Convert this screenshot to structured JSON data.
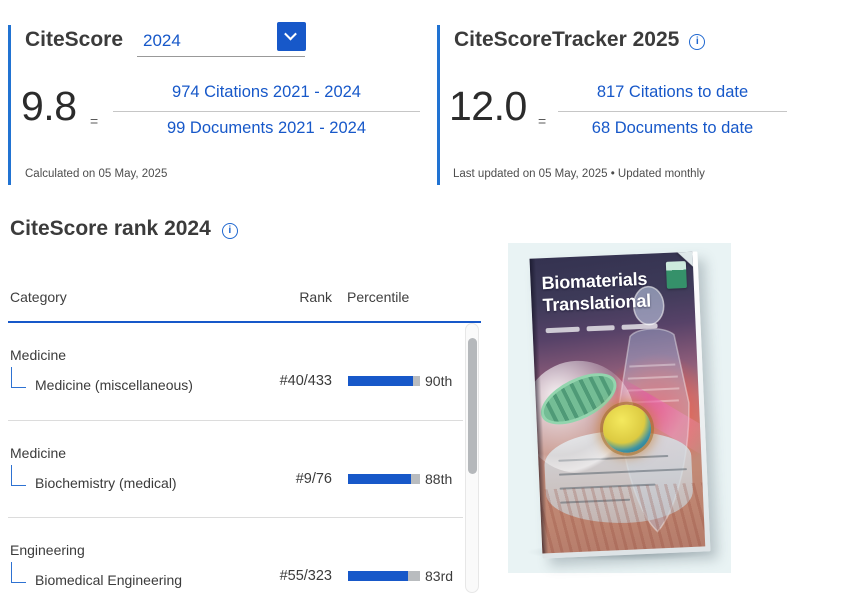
{
  "citescore_panel": {
    "title": "CiteScore",
    "year_selected": "2024",
    "score": "9.8",
    "equals_sign": "=",
    "numerator_link": "974 Citations 2021 - 2024",
    "denominator_link": "99 Documents 2021 - 2024",
    "footnote": "Calculated on 05 May, 2025"
  },
  "tracker_panel": {
    "title": "CiteScoreTracker 2025",
    "score": "12.0",
    "equals_sign": "=",
    "numerator_link": "817 Citations to date",
    "denominator_link": "68 Documents to date",
    "footnote": "Last updated on 05 May, 2025 • Updated monthly"
  },
  "rank_section": {
    "title": "CiteScore rank 2024",
    "columns": {
      "category": "Category",
      "rank": "Rank",
      "percentile": "Percentile"
    },
    "rows": [
      {
        "parent_category": "Medicine",
        "subcategory": "Medicine (miscellaneous)",
        "rank": "#40/433",
        "percentile_label": "90th",
        "percentile_value": 90
      },
      {
        "parent_category": "Medicine",
        "subcategory": "Biochemistry (medical)",
        "rank": "#9/76",
        "percentile_label": "88th",
        "percentile_value": 88
      },
      {
        "parent_category": "Engineering",
        "subcategory": "Biomedical Engineering",
        "rank": "#55/323",
        "percentile_label": "83rd",
        "percentile_value": 83
      }
    ]
  },
  "journal_cover": {
    "title_line1": "Biomaterials",
    "title_line2": "Translational"
  },
  "icons": {
    "info_glyph": "i"
  },
  "colors": {
    "link_blue": "#1758c9",
    "accent_bar_blue": "#2173d2",
    "bar_fill_blue": "#1758c9",
    "bar_track_gray": "#b9bcbf",
    "header_rule_blue": "#1758c9"
  }
}
